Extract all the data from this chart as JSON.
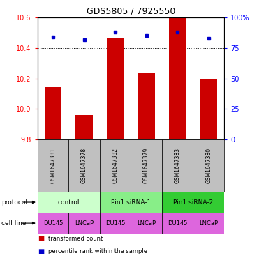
{
  "title": "GDS5805 / 7925550",
  "ylim": [
    9.8,
    10.6
  ],
  "yticks_left": [
    9.8,
    10.0,
    10.2,
    10.4,
    10.6
  ],
  "yticks_right": [
    0,
    25,
    50,
    75,
    100
  ],
  "ytick_labels_right": [
    "0",
    "25",
    "50",
    "75",
    "100%"
  ],
  "samples": [
    "GSM1647381",
    "GSM1647378",
    "GSM1647382",
    "GSM1647379",
    "GSM1647383",
    "GSM1647380"
  ],
  "red_values": [
    10.145,
    9.96,
    10.47,
    10.235,
    10.595,
    10.195
  ],
  "blue_values_pct": [
    84,
    82,
    88,
    85,
    88,
    83
  ],
  "cell_lines": [
    "DU145",
    "LNCaP",
    "DU145",
    "LNCaP",
    "DU145",
    "LNCaP"
  ],
  "cell_line_color": "#dd66dd",
  "bar_color": "#cc0000",
  "dot_color": "#0000cc",
  "sample_bg_color": "#c0c0c0",
  "proto_groups": [
    [
      0,
      2,
      "control",
      "#ccffcc"
    ],
    [
      2,
      4,
      "Pin1 siRNA-1",
      "#88ee88"
    ],
    [
      4,
      6,
      "Pin1 siRNA-2",
      "#33cc33"
    ]
  ],
  "legend_red": "transformed count",
  "legend_blue": "percentile rank within the sample"
}
